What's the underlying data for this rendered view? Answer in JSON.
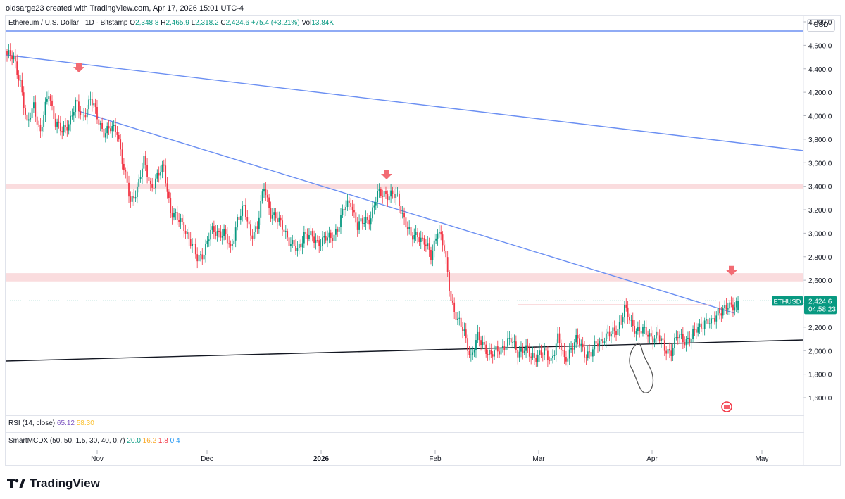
{
  "header": {
    "byline": "oldsarge23 created with TradingView.com, Apr 17, 2026 15:01 UTC-4"
  },
  "legend": {
    "symbol": "Ethereum / U.S. Dollar · 1D · Bitstamp",
    "open_label": "O",
    "open": "2,348.8",
    "high_label": "H",
    "high": "2,465.9",
    "low_label": "L",
    "low": "2,318.2",
    "close_label": "C",
    "close": "2,424.6",
    "change": "+75.4 (+3.21%)",
    "vol_label": "Vol",
    "vol": "13.84K"
  },
  "currency": "USD",
  "price_tag": {
    "ticker": "ETHUSD",
    "price": "2,424.6",
    "countdown": "04:58:23"
  },
  "indicators": {
    "rsi": {
      "label": "RSI (14, close)",
      "v1": "65.12",
      "v2": "58.30"
    },
    "mcdx": {
      "label": "SmartMCDX (50, 50, 1.5, 30, 40, 0.7)",
      "v1": "20.0",
      "v2": "16.2",
      "v3": "1.8",
      "v4": "0.4"
    }
  },
  "branding": {
    "name": "TradingView"
  },
  "colors": {
    "up": "#089981",
    "down": "#f23645",
    "trend": "#6b8ff2",
    "zone": "#f8d0d3",
    "support": "#131722",
    "arrow": "#f26b73"
  },
  "chart_data": {
    "type": "candlestick",
    "title": "Ethereum / U.S. Dollar · 1D · Bitstamp",
    "ylabel": "USD",
    "ylim": [
      1500,
      5000
    ],
    "y_ticks": [
      "4,800.0",
      "4,600.0",
      "4,400.0",
      "4,200.0",
      "4,000.0",
      "3,800.0",
      "3,600.0",
      "3,400.0",
      "3,200.0",
      "3,000.0",
      "2,800.0",
      "2,600.0",
      "2,400.0",
      "2,200.0",
      "2,000.0",
      "1,800.0",
      "1,600.0"
    ],
    "x_ticks": [
      "Nov",
      "Dec",
      "2026",
      "Feb",
      "Mar",
      "Apr",
      "May"
    ],
    "close_path": [
      [
        0,
        4520
      ],
      [
        4,
        4480
      ],
      [
        8,
        4300
      ],
      [
        12,
        3900
      ],
      [
        16,
        4100
      ],
      [
        20,
        3850
      ],
      [
        25,
        4200
      ],
      [
        29,
        3950
      ],
      [
        33,
        3850
      ],
      [
        37,
        3950
      ],
      [
        41,
        4100
      ],
      [
        45,
        3980
      ],
      [
        50,
        4150
      ],
      [
        54,
        3980
      ],
      [
        58,
        3870
      ],
      [
        62,
        3880
      ],
      [
        66,
        3880
      ],
      [
        70,
        3550
      ],
      [
        74,
        3250
      ],
      [
        78,
        3400
      ],
      [
        82,
        3600
      ],
      [
        86,
        3400
      ],
      [
        90,
        3480
      ],
      [
        94,
        3550
      ],
      [
        98,
        3200
      ],
      [
        102,
        3110
      ],
      [
        106,
        3070
      ],
      [
        110,
        2920
      ],
      [
        114,
        2780
      ],
      [
        118,
        2850
      ],
      [
        122,
        3000
      ],
      [
        126,
        3020
      ],
      [
        130,
        3000
      ],
      [
        134,
        2850
      ],
      [
        138,
        3130
      ],
      [
        142,
        3200
      ],
      [
        146,
        3000
      ],
      [
        150,
        3050
      ],
      [
        154,
        3400
      ],
      [
        158,
        3180
      ],
      [
        162,
        3100
      ],
      [
        166,
        3050
      ],
      [
        170,
        2900
      ],
      [
        174,
        2850
      ],
      [
        178,
        3000
      ],
      [
        182,
        2960
      ],
      [
        186,
        2930
      ],
      [
        190,
        2950
      ],
      [
        194,
        2950
      ],
      [
        198,
        3050
      ],
      [
        202,
        3200
      ],
      [
        206,
        3280
      ],
      [
        210,
        3050
      ],
      [
        214,
        3100
      ],
      [
        218,
        3150
      ],
      [
        222,
        3320
      ],
      [
        226,
        3350
      ],
      [
        230,
        3320
      ],
      [
        234,
        3300
      ],
      [
        238,
        3130
      ],
      [
        242,
        2950
      ],
      [
        246,
        3000
      ],
      [
        250,
        2920
      ],
      [
        254,
        2800
      ],
      [
        258,
        3050
      ],
      [
        262,
        2850
      ],
      [
        266,
        2450
      ],
      [
        270,
        2250
      ],
      [
        274,
        2150
      ],
      [
        278,
        1950
      ],
      [
        282,
        2100
      ],
      [
        286,
        2050
      ],
      [
        290,
        1950
      ],
      [
        294,
        2000
      ],
      [
        298,
        2050
      ],
      [
        302,
        2080
      ],
      [
        306,
        2000
      ],
      [
        310,
        2010
      ],
      [
        314,
        1950
      ],
      [
        318,
        1970
      ],
      [
        322,
        1970
      ],
      [
        326,
        1930
      ],
      [
        330,
        2100
      ],
      [
        334,
        1920
      ],
      [
        338,
        2030
      ],
      [
        342,
        2090
      ],
      [
        346,
        1990
      ],
      [
        350,
        1970
      ],
      [
        354,
        2070
      ],
      [
        358,
        2120
      ],
      [
        362,
        2130
      ],
      [
        366,
        2200
      ],
      [
        370,
        2350
      ],
      [
        374,
        2230
      ],
      [
        378,
        2180
      ],
      [
        382,
        2150
      ],
      [
        386,
        2130
      ],
      [
        390,
        2120
      ],
      [
        394,
        2020
      ],
      [
        398,
        2000
      ],
      [
        402,
        2120
      ],
      [
        406,
        2100
      ],
      [
        410,
        2100
      ],
      [
        414,
        2200
      ],
      [
        418,
        2250
      ],
      [
        422,
        2220
      ],
      [
        426,
        2350
      ],
      [
        430,
        2340
      ],
      [
        434,
        2380
      ],
      [
        438,
        2424.6
      ]
    ],
    "last": {
      "open": 2348.8,
      "high": 2465.9,
      "low": 2318.2,
      "close": 2424.6,
      "change": 75.4,
      "change_pct": 3.21
    },
    "annotations": {
      "resistance_zone_1": [
        3380,
        3420
      ],
      "resistance_zone_2": [
        2590,
        2660
      ],
      "horizontal_level": 2390,
      "down_arrows_at_price": [
        4380,
        3470,
        2650
      ],
      "trendlines": [
        "upper long-term descending",
        "lower descending resistance",
        "rising support"
      ]
    }
  }
}
